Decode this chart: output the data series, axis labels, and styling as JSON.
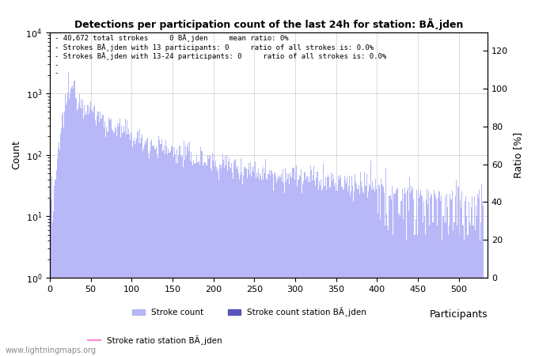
{
  "title": "Detections per participation count of the last 24h for station: BÃ¸jden",
  "annotation_lines": [
    "40,672 total strokes     0 BÃ¸jden     mean ratio: 0%",
    "Strokes BÃ¸jden with 13 participants: 0     ratio of all strokes is: 0.0%",
    "Strokes BÃ¸jden with 13-24 participants: 0     ratio of all strokes is: 0.0%"
  ],
  "ylabel_left": "Count",
  "ylabel_right": "Ratio [%]",
  "x_max": 530,
  "y_log_min": 1,
  "y_log_max": 10000,
  "y_right_max": 130,
  "bar_color_light": "#b8b8f8",
  "bar_color_dark": "#5555bb",
  "ratio_line_color": "#ff88cc",
  "legend_labels": [
    "Stroke count",
    "Stroke count station BÃ¸jden",
    "Stroke ratio station BÃ¸jden"
  ],
  "watermark": "www.lightningmaps.org",
  "participants_label": "Participants",
  "xticks": [
    0,
    50,
    100,
    150,
    200,
    250,
    300,
    350,
    400,
    450,
    500
  ],
  "yticks_right": [
    0,
    20,
    40,
    60,
    80,
    100,
    120
  ]
}
